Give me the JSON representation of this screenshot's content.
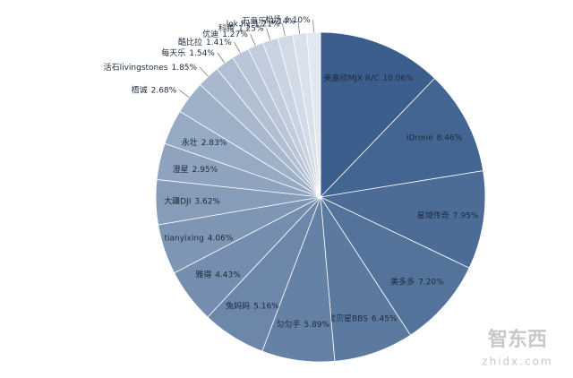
{
  "chart_data": {
    "type": "pie",
    "categories": [
      "美嘉欣MJX R/C",
      "iDrone",
      "星域传奇",
      "美多多",
      "宝贝星BBS",
      "匀匀手",
      "兔妈妈",
      "雅得",
      "tianyixing",
      "大疆DJI",
      "澄星",
      "永壮",
      "梧诚",
      "活石livingstones",
      "每天乐",
      "酷比拉",
      "优迪",
      "科腾",
      "lok fly",
      "万童乐",
      "松炀"
    ],
    "values": [
      10.06,
      8.46,
      7.95,
      7.2,
      6.45,
      5.89,
      5.16,
      4.43,
      4.06,
      3.62,
      2.95,
      2.83,
      2.68,
      1.85,
      1.54,
      1.41,
      1.27,
      1.25,
      1.21,
      1.14,
      1.1
    ],
    "value_labels": [
      "10.06%",
      "8.46%",
      "7.95%",
      "7.20%",
      "6.45%",
      "5.89%",
      "5.16%",
      "4.43%",
      "4.06%",
      "3.62%",
      "2.95%",
      "2.83%",
      "2.68%",
      "1.85%",
      "1.54%",
      "1.41%",
      "1.27%",
      "1.25%",
      "1.21%",
      "1.14%",
      "1.10%"
    ],
    "colors": [
      "#3b5e8c",
      "#436591",
      "#4c6c96",
      "#54739b",
      "#5c7aa0",
      "#6581a5",
      "#6d87aa",
      "#758eaf",
      "#7e95b4",
      "#869cb9",
      "#8fa3be",
      "#97aac3",
      "#9fb1c8",
      "#a8b8cd",
      "#b0bfd2",
      "#b8c6d7",
      "#c1ccdc",
      "#c9d3e1",
      "#d1dae6",
      "#dae1eb",
      "#e2e8f0"
    ]
  },
  "watermark": {
    "brand": "智东西",
    "url": "zhidx.com"
  }
}
